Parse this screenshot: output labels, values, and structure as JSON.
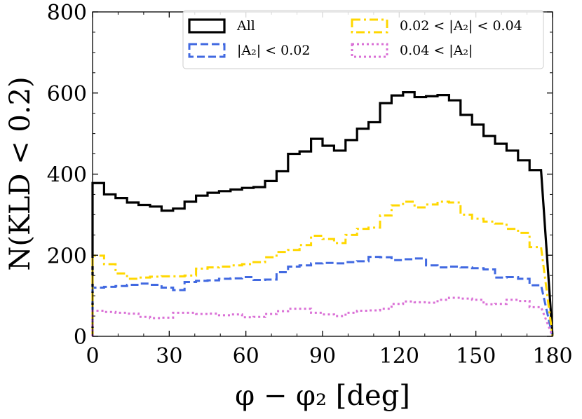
{
  "chart_data": {
    "type": "histogram-step",
    "xlabel": "φ − φ₂ [deg]",
    "ylabel": "N(KLD < 0.2)",
    "xlim": [
      0,
      180
    ],
    "ylim": [
      0,
      800
    ],
    "xticks": [
      0,
      30,
      60,
      90,
      120,
      150,
      180
    ],
    "yticks": [
      0,
      200,
      400,
      600,
      800
    ],
    "bin_width": 4.5,
    "bin_edges_start": 0,
    "legend_position": "top-right",
    "series": [
      {
        "name": "All",
        "legend_label": "All",
        "color": "#000000",
        "style": "solid",
        "values": [
          378,
          350,
          341,
          330,
          324,
          320,
          310,
          315,
          332,
          347,
          354,
          358,
          362,
          366,
          368,
          383,
          407,
          450,
          456,
          487,
          470,
          458,
          484,
          512,
          528,
          575,
          594,
          602,
          590,
          592,
          595,
          582,
          546,
          522,
          494,
          475,
          458,
          434,
          410
        ]
      },
      {
        "name": "|A2| < 0.02",
        "legend_label": "|A₂| < 0.02",
        "color": "#4169e1",
        "style": "dashed",
        "values": [
          120,
          122,
          124,
          127,
          130,
          127,
          120,
          114,
          134,
          137,
          138,
          142,
          143,
          146,
          139,
          140,
          158,
          172,
          175,
          180,
          181,
          180,
          183,
          185,
          196,
          195,
          188,
          190,
          192,
          175,
          170,
          172,
          170,
          168,
          165,
          145,
          146,
          142,
          126
        ]
      },
      {
        "name": "0.02 < |A2| < 0.04",
        "legend_label": "0.02 < |A₂| < 0.04",
        "color": "#ffd700",
        "style": "dashdot",
        "values": [
          199,
          178,
          155,
          142,
          145,
          147,
          148,
          148,
          150,
          167,
          170,
          172,
          175,
          178,
          183,
          195,
          208,
          213,
          225,
          248,
          240,
          230,
          250,
          265,
          268,
          298,
          323,
          332,
          318,
          325,
          332,
          330,
          300,
          290,
          283,
          278,
          265,
          255,
          220
        ]
      },
      {
        "name": "0.04 < |A2|",
        "legend_label": "0.04 < |A₂|",
        "color": "#da70d6",
        "style": "dotted",
        "values": [
          63,
          60,
          58,
          56,
          48,
          45,
          46,
          58,
          58,
          55,
          56,
          52,
          54,
          47,
          48,
          55,
          62,
          68,
          68,
          58,
          54,
          50,
          58,
          63,
          64,
          68,
          80,
          86,
          84,
          83,
          90,
          95,
          93,
          90,
          79,
          80,
          90,
          87,
          72
        ]
      }
    ]
  }
}
